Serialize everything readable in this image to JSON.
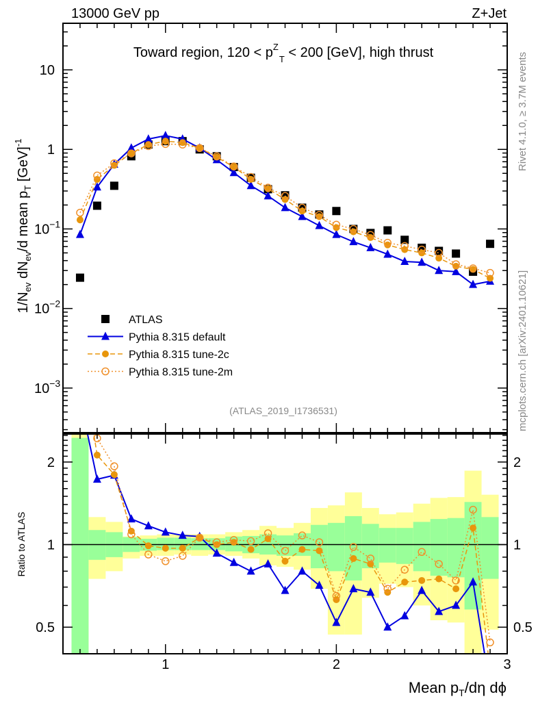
{
  "header": {
    "left": "13000 GeV pp",
    "right": "Z+Jet"
  },
  "side_text": {
    "rivet": "Rivet 4.1.0, ≥ 3.7M events",
    "source": "mcplots.cern.ch [arXiv:2401.10621]"
  },
  "chart_data": {
    "type": "line",
    "title": {
      "pre": "Toward region, 120 < p",
      "sub": "T",
      "sup": "Z",
      "post": " < 200 [GeV], high thrust"
    },
    "reference": "(ATLAS_2019_I1736531)",
    "xlabel": {
      "pre": "Mean p",
      "sub": "T",
      "post": "/dη dϕ"
    },
    "ylabel": {
      "a": "1/N",
      "b": "ev",
      "c": " dN",
      "d": "ev",
      "e": "/d mean p",
      "f": "T",
      "g": " [GeV]",
      "h": "-1"
    },
    "ratio_ylabel": "Ratio to ATLAS",
    "xlim": [
      0.4,
      3.0
    ],
    "ylim": [
      0.000275,
      38.5
    ],
    "yscale": "log",
    "ratio_ylim": [
      0.4,
      2.53
    ],
    "ratio_yscale": "log",
    "x_ticks": [
      {
        "v": 1,
        "label": "1"
      },
      {
        "v": 2,
        "label": "2"
      },
      {
        "v": 3,
        "label": "3"
      }
    ],
    "y_ticks": [
      {
        "v": 10,
        "label": "10",
        "exp": ""
      },
      {
        "v": 1,
        "label": "1",
        "exp": ""
      },
      {
        "v": 0.1,
        "label": "10",
        "exp": "−1"
      },
      {
        "v": 0.01,
        "label": "10",
        "exp": "−2"
      },
      {
        "v": 0.001,
        "label": "10",
        "exp": "−3"
      }
    ],
    "ratio_ticks": [
      {
        "v": 0.5,
        "label": "0.5"
      },
      {
        "v": 1,
        "label": "1"
      },
      {
        "v": 2,
        "label": "2"
      }
    ],
    "x": [
      0.5,
      0.6,
      0.7,
      0.8,
      0.9,
      1.0,
      1.1,
      1.2,
      1.3,
      1.4,
      1.5,
      1.6,
      1.7,
      1.8,
      1.9,
      2.0,
      2.1,
      2.2,
      2.3,
      2.4,
      2.5,
      2.6,
      2.7,
      2.8,
      2.9
    ],
    "bin_width": 0.1,
    "series": [
      {
        "name": "ATLAS",
        "color": "#000000",
        "marker": "square",
        "line": "none",
        "values": [
          0.0244,
          0.196,
          0.349,
          0.82,
          1.15,
          1.27,
          1.27,
          1.0,
          0.82,
          0.6,
          0.44,
          0.316,
          0.265,
          0.185,
          0.152,
          0.168,
          0.1,
          0.089,
          0.096,
          0.073,
          0.058,
          0.053,
          0.049,
          0.029,
          0.065
        ]
      },
      {
        "name": "Pythia 8.315 default",
        "color": "#0000e0",
        "marker": "triangle",
        "line": "solid",
        "values": [
          0.085,
          0.336,
          0.65,
          1.04,
          1.35,
          1.49,
          1.35,
          1.04,
          0.74,
          0.51,
          0.35,
          0.26,
          0.185,
          0.143,
          0.11,
          0.085,
          0.069,
          0.058,
          0.048,
          0.039,
          0.038,
          0.03,
          0.029,
          0.02,
          0.022
        ],
        "ratio": [
          3.4,
          1.73,
          1.79,
          1.24,
          1.17,
          1.11,
          1.08,
          1.07,
          0.93,
          0.86,
          0.8,
          0.85,
          0.68,
          0.8,
          0.71,
          0.52,
          0.69,
          0.67,
          0.5,
          0.55,
          0.68,
          0.57,
          0.6,
          0.73,
          0.3
        ]
      },
      {
        "name": "Pythia 8.315 tune-2c",
        "color": "#e8960c",
        "marker": "circle",
        "line": "dashed",
        "values": [
          0.13,
          0.42,
          0.63,
          0.9,
          1.15,
          1.27,
          1.22,
          1.04,
          0.8,
          0.6,
          0.42,
          0.32,
          0.235,
          0.168,
          0.143,
          0.104,
          0.092,
          0.078,
          0.063,
          0.055,
          0.05,
          0.043,
          0.034,
          0.031,
          0.024
        ],
        "ratio": [
          5.3,
          2.12,
          1.8,
          1.12,
          0.99,
          0.97,
          0.97,
          1.06,
          1.0,
          1.02,
          0.96,
          1.05,
          0.87,
          0.96,
          0.95,
          0.63,
          0.89,
          0.85,
          0.67,
          0.73,
          0.74,
          0.75,
          0.69,
          1.15,
          0.35
        ]
      },
      {
        "name": "Pythia 8.315 tune-2m",
        "color": "#f0902a",
        "marker": "open-circle",
        "line": "dotted",
        "values": [
          0.16,
          0.47,
          0.67,
          0.89,
          1.1,
          1.17,
          1.15,
          1.04,
          0.82,
          0.61,
          0.45,
          0.33,
          0.26,
          0.185,
          0.15,
          0.113,
          0.1,
          0.084,
          0.067,
          0.061,
          0.055,
          0.05,
          0.036,
          0.032,
          0.028
        ],
        "ratio": [
          6.5,
          2.44,
          1.93,
          1.09,
          0.92,
          0.87,
          0.91,
          1.06,
          1.02,
          1.04,
          1.03,
          1.1,
          0.95,
          1.08,
          1.02,
          0.65,
          0.98,
          0.89,
          0.69,
          0.81,
          0.94,
          0.85,
          0.74,
          1.34,
          0.44
        ]
      }
    ],
    "bands": {
      "total_color": "#ffff99",
      "stat_color": "#99ff99",
      "total": [
        [
          0.3,
          3.0
        ],
        [
          0.75,
          1.26
        ],
        [
          0.8,
          1.21
        ],
        [
          0.89,
          1.07
        ],
        [
          0.91,
          1.08
        ],
        [
          0.91,
          1.09
        ],
        [
          0.92,
          1.09
        ],
        [
          0.91,
          1.09
        ],
        [
          0.92,
          1.09
        ],
        [
          0.91,
          1.11
        ],
        [
          0.89,
          1.13
        ],
        [
          0.84,
          1.17
        ],
        [
          0.83,
          1.15
        ],
        [
          0.81,
          1.2
        ],
        [
          0.69,
          1.36
        ],
        [
          0.47,
          1.39
        ],
        [
          0.47,
          1.55
        ],
        [
          0.64,
          1.36
        ],
        [
          0.72,
          1.29
        ],
        [
          0.7,
          1.31
        ],
        [
          0.6,
          1.41
        ],
        [
          0.53,
          1.48
        ],
        [
          0.52,
          1.49
        ],
        [
          0.3,
          1.86
        ],
        [
          0.49,
          1.52
        ]
      ],
      "stat": [
        [
          0.3,
          2.45
        ],
        [
          0.88,
          1.13
        ],
        [
          0.9,
          1.11
        ],
        [
          0.94,
          1.065
        ],
        [
          0.95,
          1.05
        ],
        [
          0.955,
          1.06
        ],
        [
          0.955,
          1.06
        ],
        [
          0.955,
          1.055
        ],
        [
          0.955,
          1.055
        ],
        [
          0.945,
          1.07
        ],
        [
          0.93,
          1.075
        ],
        [
          0.92,
          1.09
        ],
        [
          0.91,
          1.08
        ],
        [
          0.91,
          1.1
        ],
        [
          0.82,
          1.18
        ],
        [
          0.8,
          1.2
        ],
        [
          0.74,
          1.27
        ],
        [
          0.82,
          1.19
        ],
        [
          0.86,
          1.15
        ],
        [
          0.85,
          1.15
        ],
        [
          0.8,
          1.21
        ],
        [
          0.77,
          1.24
        ],
        [
          0.76,
          1.25
        ],
        [
          0.58,
          1.43
        ],
        [
          0.75,
          1.26
        ]
      ]
    },
    "legend_placement": "center-left",
    "grid": false
  }
}
